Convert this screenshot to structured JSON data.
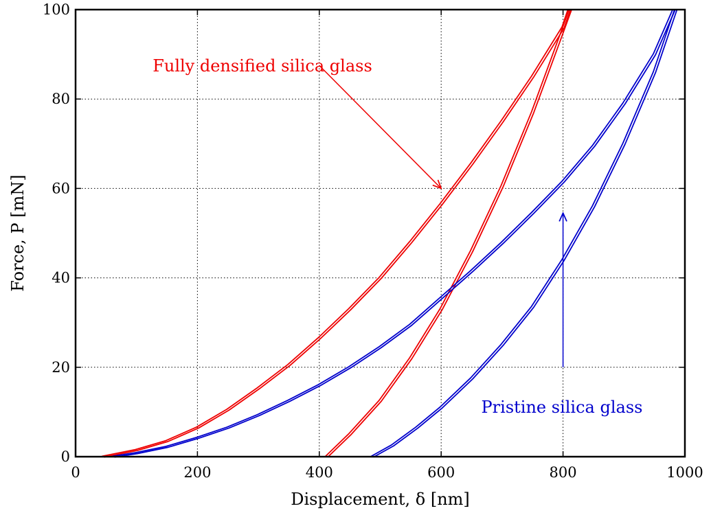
{
  "chart_data": {
    "type": "line",
    "title": "",
    "xlabel": "Displacement, δ [nm]",
    "ylabel": "Force, P [mN]",
    "xlim": [
      0,
      1000
    ],
    "ylim": [
      0,
      100
    ],
    "x_ticks": [
      0,
      200,
      400,
      600,
      800,
      1000
    ],
    "y_ticks": [
      0,
      20,
      40,
      60,
      80,
      100
    ],
    "grid": "dotted",
    "colors": {
      "densified": "#ee0000",
      "pristine": "#0000cc"
    },
    "series": [
      {
        "group": "densified",
        "phase": "loading",
        "x": [
          45,
          100,
          150,
          200,
          250,
          300,
          350,
          400,
          450,
          500,
          550,
          600,
          650,
          700,
          750,
          800,
          810
        ],
        "y": [
          0,
          1.5,
          3.5,
          6.5,
          10.5,
          15.3,
          20.5,
          26.5,
          33,
          40,
          48,
          56.5,
          65.5,
          75,
          85,
          96,
          100
        ]
      },
      {
        "group": "densified",
        "phase": "unloading",
        "x": [
          412,
          450,
          500,
          550,
          600,
          650,
          700,
          750,
          800,
          812
        ],
        "y": [
          0,
          5,
          12.5,
          22,
          33,
          46,
          60.5,
          77,
          95.5,
          100
        ]
      },
      {
        "group": "pristine",
        "phase": "loading",
        "x": [
          62,
          100,
          150,
          200,
          250,
          300,
          350,
          400,
          450,
          500,
          550,
          600,
          650,
          700,
          750,
          800,
          850,
          900,
          950,
          982
        ],
        "y": [
          0,
          0.8,
          2.2,
          4.2,
          6.5,
          9.3,
          12.5,
          16,
          20,
          24.5,
          29.5,
          35.5,
          41.5,
          47.8,
          54.5,
          61.5,
          69.5,
          79,
          90,
          100
        ]
      },
      {
        "group": "pristine",
        "phase": "unloading",
        "x": [
          487,
          520,
          560,
          600,
          650,
          700,
          750,
          800,
          850,
          900,
          950,
          985
        ],
        "y": [
          0,
          2.5,
          6.5,
          11,
          17.5,
          25,
          33.5,
          44,
          56,
          70,
          86,
          100
        ]
      }
    ],
    "annotations": [
      {
        "text": "Fully densified silica glass",
        "color": "#ee0000",
        "arrow_from": [
          400,
          87.5
        ],
        "arrow_to": [
          600,
          60
        ]
      },
      {
        "text": "Pristine silica glass",
        "color": "#0000cc",
        "arrow_from": [
          800,
          20
        ],
        "arrow_to": [
          800,
          54.5
        ]
      }
    ]
  }
}
